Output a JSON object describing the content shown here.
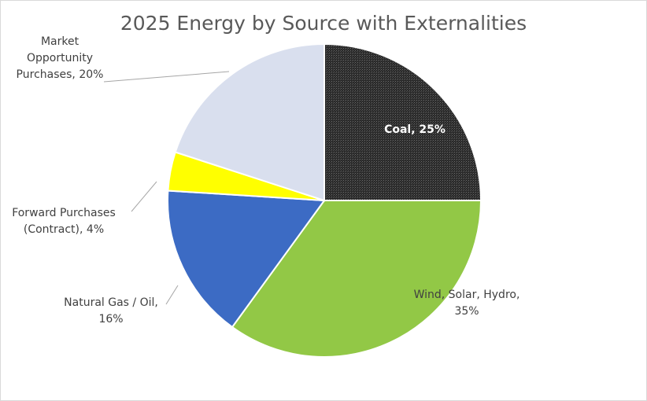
{
  "chart_data": {
    "type": "pie",
    "title": "2025 Energy by Source with Externalities",
    "slices": [
      {
        "name": "Coal",
        "value": 25,
        "color": "#2b2b2b",
        "label_lines": [
          "Coal, 25%"
        ]
      },
      {
        "name": "Wind, Solar, Hydro",
        "value": 35,
        "color": "#92c846",
        "label_lines": [
          "Wind, Solar, Hydro,",
          "35%"
        ]
      },
      {
        "name": "Natural Gas / Oil",
        "value": 16,
        "color": "#3c6bc4",
        "label_lines": [
          "Natural Gas / Oil,",
          "16%"
        ]
      },
      {
        "name": "Forward Purchases (Contract)",
        "value": 4,
        "color": "#ffff00",
        "label_lines": [
          "Forward Purchases",
          "(Contract), 4%"
        ]
      },
      {
        "name": "Market Opportunity Purchases",
        "value": 20,
        "color": "#d9dfee",
        "label_lines": [
          "Market",
          "Opportunity",
          "Purchases, 20%"
        ]
      }
    ],
    "legend": "none"
  }
}
